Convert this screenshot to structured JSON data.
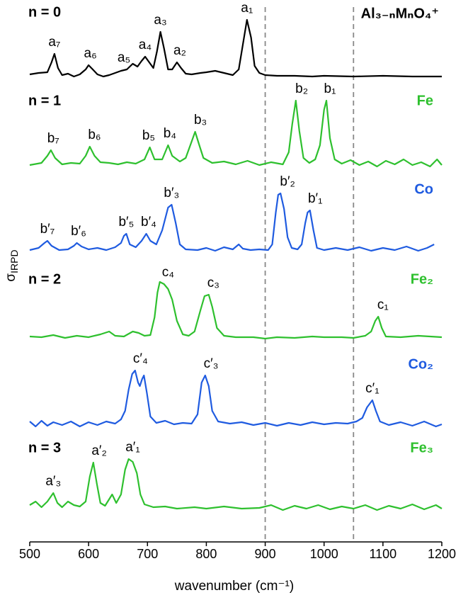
{
  "chart_data": {
    "type": "line",
    "title": "Al₃₋ₙMₙO₄⁺",
    "xlabel": "wavenumber (cm⁻¹)",
    "ylabel": "σ",
    "ylabel_sub": "IRPD",
    "xlim": [
      500,
      1200
    ],
    "xticks": [
      500,
      600,
      700,
      800,
      900,
      1000,
      1100,
      1200
    ],
    "vlines": [
      900,
      1050
    ],
    "group_labels": [
      "n = 0",
      "n = 1",
      "n = 2",
      "n = 3"
    ],
    "series": [
      {
        "color": "#000000",
        "x": [
          500,
          515,
          530,
          537,
          542,
          548,
          555,
          565,
          575,
          585,
          595,
          600,
          607,
          615,
          625,
          635,
          645,
          655,
          665,
          675,
          683,
          690,
          696,
          703,
          710,
          716,
          722,
          728,
          735,
          742,
          750,
          757,
          765,
          775,
          790,
          800,
          815,
          830,
          845,
          855,
          862,
          869,
          876,
          882,
          890,
          900,
          920,
          950,
          980,
          1000,
          1050,
          1100,
          1150,
          1200
        ],
        "values": [
          0.03,
          0.05,
          0.06,
          0.2,
          0.32,
          0.12,
          0.02,
          0.04,
          0,
          0.03,
          0.1,
          0.16,
          0.1,
          0.03,
          0,
          0.02,
          0.05,
          0.08,
          0.1,
          0.18,
          0.14,
          0.22,
          0.28,
          0.2,
          0.12,
          0.35,
          0.63,
          0.4,
          0.1,
          0.1,
          0.2,
          0.12,
          0.04,
          0.03,
          0.05,
          0.06,
          0.08,
          0.05,
          0.02,
          0.1,
          0.45,
          0.8,
          0.55,
          0.15,
          0.05,
          0.02,
          0.01,
          0.01,
          0,
          0.01,
          0,
          0.01,
          0,
          0
        ]
      },
      {
        "name": "Fe",
        "color": "#2ec02e",
        "x": [
          500,
          520,
          530,
          536,
          543,
          555,
          570,
          585,
          595,
          602,
          610,
          620,
          635,
          650,
          665,
          680,
          695,
          704,
          712,
          725,
          735,
          742,
          755,
          765,
          775,
          781,
          788,
          795,
          810,
          830,
          850,
          870,
          890,
          910,
          930,
          940,
          946,
          952,
          958,
          965,
          975,
          985,
          993,
          1000,
          1004,
          1010,
          1018,
          1030,
          1045,
          1060,
          1075,
          1090,
          1105,
          1120,
          1135,
          1150,
          1165,
          1180,
          1192,
          1200
        ],
        "values": [
          0.02,
          0.05,
          0.15,
          0.23,
          0.12,
          0.03,
          0.05,
          0.04,
          0.15,
          0.28,
          0.15,
          0.06,
          0.05,
          0.03,
          0.06,
          0.04,
          0.1,
          0.27,
          0.1,
          0.1,
          0.3,
          0.15,
          0.07,
          0.12,
          0.35,
          0.49,
          0.3,
          0.12,
          0.05,
          0.07,
          0.03,
          0.08,
          0.02,
          0.06,
          0.03,
          0.2,
          0.6,
          0.93,
          0.5,
          0.12,
          0.05,
          0.1,
          0.3,
          0.8,
          0.93,
          0.4,
          0.1,
          0.04,
          0.09,
          0.02,
          0.07,
          0,
          0.08,
          0.03,
          0.1,
          0.02,
          0.06,
          0,
          0.1,
          0.02
        ]
      },
      {
        "name": "Co",
        "color": "#1f5be0",
        "x": [
          500,
          515,
          525,
          530,
          537,
          550,
          565,
          575,
          580,
          588,
          600,
          615,
          630,
          645,
          655,
          660,
          664,
          670,
          680,
          690,
          698,
          705,
          715,
          725,
          735,
          741,
          748,
          755,
          765,
          785,
          800,
          815,
          830,
          845,
          855,
          862,
          875,
          890,
          905,
          912,
          918,
          922,
          926,
          932,
          938,
          945,
          955,
          962,
          968,
          972,
          976,
          982,
          988,
          1000,
          1020,
          1040,
          1060,
          1080,
          1100,
          1120,
          1140,
          1160,
          1175,
          1187
        ],
        "values": [
          0.02,
          0.05,
          0.12,
          0.15,
          0.08,
          0.02,
          0.03,
          0.08,
          0.12,
          0.07,
          0.03,
          0.05,
          0.02,
          0.06,
          0.12,
          0.22,
          0.25,
          0.1,
          0.06,
          0.15,
          0.25,
          0.15,
          0.1,
          0.3,
          0.62,
          0.66,
          0.4,
          0.1,
          0.03,
          0.02,
          0.05,
          0.01,
          0.06,
          0.03,
          0.1,
          0.04,
          0.02,
          0.03,
          0.02,
          0.1,
          0.55,
          0.8,
          0.82,
          0.6,
          0.2,
          0.05,
          0.03,
          0.1,
          0.4,
          0.55,
          0.58,
          0.3,
          0.05,
          0.02,
          0.05,
          0.02,
          0.06,
          0.01,
          0.05,
          0.02,
          0.07,
          0.01,
          0.05,
          0.1
        ]
      },
      {
        "name": "Fe₂",
        "color": "#2ec02e",
        "x": [
          500,
          520,
          540,
          560,
          580,
          600,
          620,
          635,
          645,
          660,
          675,
          685,
          695,
          705,
          712,
          717,
          721,
          728,
          735,
          742,
          750,
          760,
          770,
          780,
          790,
          797,
          804,
          810,
          818,
          830,
          850,
          880,
          900,
          920,
          950,
          980,
          1000,
          1030,
          1050,
          1070,
          1080,
          1087,
          1092,
          1098,
          1105,
          1130,
          1160,
          1200
        ],
        "values": [
          0.03,
          0.02,
          0.05,
          0.01,
          0.04,
          0.02,
          0.06,
          0.1,
          0.04,
          0.03,
          0.1,
          0.08,
          0.04,
          0.05,
          0.3,
          0.65,
          0.8,
          0.77,
          0.7,
          0.55,
          0.25,
          0.06,
          0.04,
          0.1,
          0.4,
          0.6,
          0.62,
          0.45,
          0.15,
          0.04,
          0.02,
          0.02,
          0,
          0.02,
          0.01,
          0.03,
          0.02,
          0.02,
          0.01,
          0.04,
          0.1,
          0.25,
          0.31,
          0.15,
          0.03,
          0.02,
          0.04,
          0.02
        ]
      },
      {
        "name": "Co₂",
        "color": "#1f5be0",
        "x": [
          500,
          510,
          520,
          530,
          540,
          555,
          570,
          585,
          600,
          615,
          630,
          645,
          655,
          662,
          668,
          674,
          679,
          684,
          687,
          691,
          694,
          699,
          705,
          715,
          730,
          745,
          760,
          775,
          785,
          792,
          798,
          804,
          810,
          820,
          840,
          860,
          880,
          900,
          920,
          940,
          960,
          980,
          1000,
          1020,
          1040,
          1055,
          1065,
          1073,
          1082,
          1088,
          1095,
          1110,
          1130,
          1150,
          1170,
          1190,
          1200
        ],
        "values": [
          0.05,
          -0.02,
          0.06,
          -0.01,
          0.04,
          0,
          0.05,
          -0.02,
          0.04,
          0,
          0.05,
          0.02,
          0.08,
          0.2,
          0.5,
          0.72,
          0.77,
          0.6,
          0.55,
          0.65,
          0.7,
          0.45,
          0.12,
          0.03,
          0.06,
          0.01,
          0.03,
          0.02,
          0.15,
          0.6,
          0.7,
          0.55,
          0.2,
          0.05,
          0.02,
          0.04,
          0,
          0.03,
          -0.01,
          0.03,
          0,
          0.04,
          0.01,
          0.03,
          0.02,
          0.05,
          0.1,
          0.25,
          0.35,
          0.2,
          0.05,
          0,
          0.04,
          -0.01,
          0.05,
          -0.02,
          0.01
        ]
      },
      {
        "name": "Fe₃",
        "color": "#2ec02e",
        "x": [
          500,
          510,
          520,
          530,
          540,
          547,
          555,
          565,
          575,
          585,
          595,
          602,
          608,
          614,
          620,
          628,
          640,
          647,
          655,
          662,
          668,
          675,
          682,
          688,
          695,
          710,
          730,
          750,
          780,
          800,
          830,
          860,
          890,
          910,
          930,
          950,
          970,
          990,
          1010,
          1030,
          1050,
          1070,
          1090,
          1110,
          1130,
          1150,
          1170,
          1190,
          1200
        ],
        "values": [
          0.05,
          0.1,
          0.02,
          0.1,
          0.22,
          0.08,
          0.02,
          0.1,
          0.05,
          0.03,
          0.1,
          0.45,
          0.65,
          0.35,
          0.08,
          0.04,
          0.2,
          0.08,
          0.2,
          0.55,
          0.7,
          0.66,
          0.5,
          0.2,
          0.06,
          0.02,
          0.03,
          0,
          0.02,
          0,
          0.03,
          0,
          0.01,
          0.05,
          -0.02,
          0.04,
          0,
          0.05,
          -0.01,
          0.03,
          0,
          0.05,
          -0.02,
          0.04,
          0,
          0.06,
          -0.01,
          0.05,
          0
        ]
      }
    ],
    "annotations": [
      {
        "text": "a₇",
        "series": 0,
        "x": 542
      },
      {
        "text": "a₆",
        "series": 0,
        "x": 603
      },
      {
        "text": "a₅",
        "series": 0,
        "x": 660
      },
      {
        "text": "a₄",
        "series": 0,
        "x": 696
      },
      {
        "text": "a₃",
        "series": 0,
        "x": 722
      },
      {
        "text": "a₂",
        "series": 0,
        "x": 755
      },
      {
        "text": "a₁",
        "series": 0,
        "x": 869
      },
      {
        "text": "b₇",
        "series": 1,
        "x": 540
      },
      {
        "text": "b₆",
        "series": 1,
        "x": 610
      },
      {
        "text": "b₅",
        "series": 1,
        "x": 702
      },
      {
        "text": "b₄",
        "series": 1,
        "x": 738
      },
      {
        "text": "b₃",
        "series": 1,
        "x": 790
      },
      {
        "text": "b₂",
        "series": 1,
        "x": 962
      },
      {
        "text": "b₁",
        "series": 1,
        "x": 1010
      },
      {
        "text": "b′₇",
        "series": 2,
        "x": 530
      },
      {
        "text": "b′₆",
        "series": 2,
        "x": 583
      },
      {
        "text": "b′₅",
        "series": 2,
        "x": 664
      },
      {
        "text": "b′₄",
        "series": 2,
        "x": 702
      },
      {
        "text": "b′₃",
        "series": 2,
        "x": 741
      },
      {
        "text": "b′₂",
        "series": 2,
        "x": 938
      },
      {
        "text": "b′₁",
        "series": 2,
        "x": 985
      },
      {
        "text": "c₄",
        "series": 3,
        "x": 735
      },
      {
        "text": "c₃",
        "series": 3,
        "x": 812
      },
      {
        "text": "c₁",
        "series": 3,
        "x": 1100
      },
      {
        "text": "c′₄",
        "series": 4,
        "x": 688
      },
      {
        "text": "c′₃",
        "series": 4,
        "x": 808
      },
      {
        "text": "c′₁",
        "series": 4,
        "x": 1082
      },
      {
        "text": "a′₃",
        "series": 5,
        "x": 540
      },
      {
        "text": "a′₂",
        "series": 5,
        "x": 618
      },
      {
        "text": "a′₁",
        "series": 5,
        "x": 675
      }
    ]
  }
}
